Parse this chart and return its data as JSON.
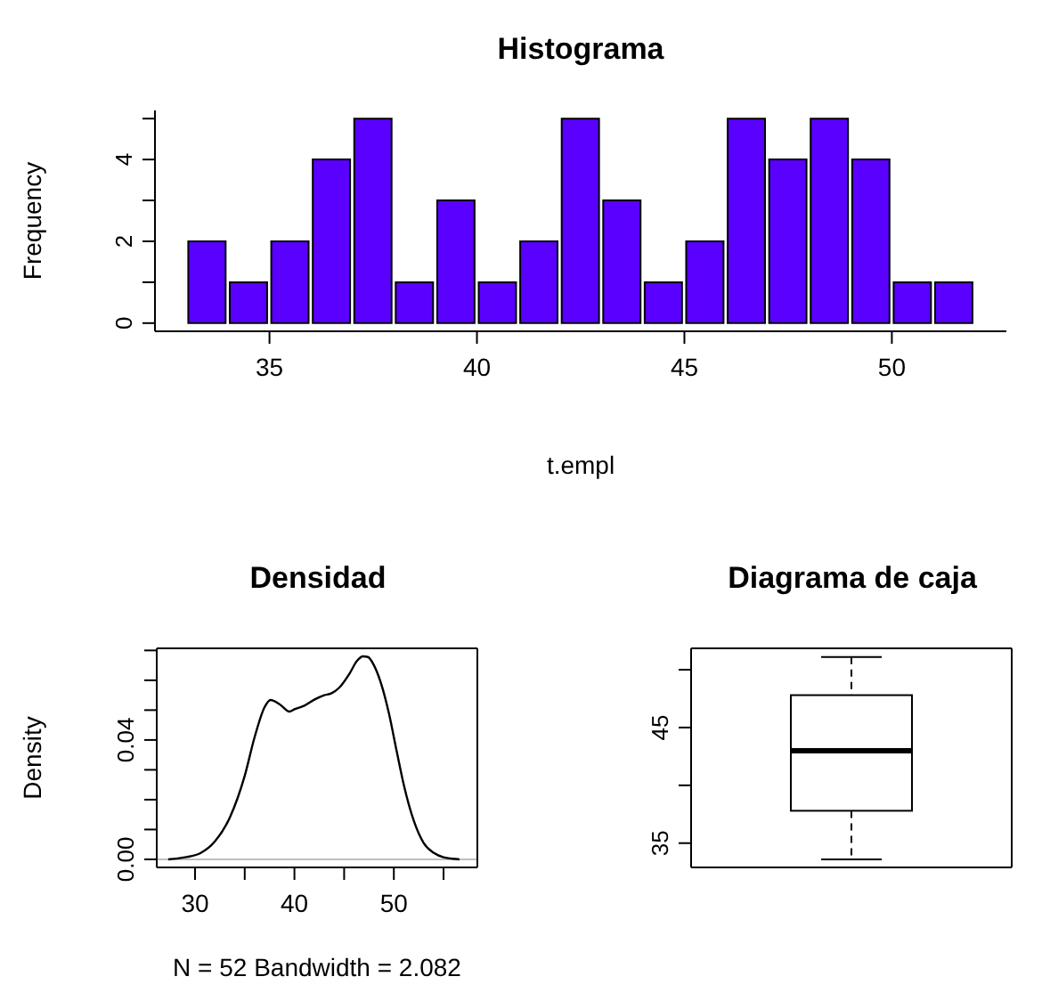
{
  "chart_data": [
    {
      "type": "histogram",
      "title": "Histograma",
      "xlabel": "t.empl",
      "ylabel": "Frequency",
      "color": "#5a00ff",
      "bins": [
        33,
        34,
        35,
        36,
        37,
        38,
        39,
        40,
        41,
        42,
        43,
        44,
        45,
        46,
        47,
        48,
        49,
        50,
        51,
        52
      ],
      "values": [
        2,
        1,
        2,
        4,
        5,
        1,
        3,
        1,
        2,
        5,
        3,
        1,
        2,
        5,
        4,
        5,
        4,
        1,
        1
      ],
      "xlim": [
        32.24,
        52.76
      ],
      "xticks": [
        35,
        40,
        45,
        50
      ],
      "ylim": [
        -0.2,
        5.2
      ],
      "yticks": [
        0,
        {
          "value": 1,
          "label": null
        },
        2,
        {
          "value": 3,
          "label": null
        },
        4,
        {
          "value": 5,
          "label": null
        }
      ]
    },
    {
      "type": "line",
      "title": "Densidad",
      "xlabel": "N = 52   Bandwidth = 2.082",
      "ylabel": "Density",
      "x": [
        27.3,
        29,
        30.5,
        32,
        33.5,
        35,
        36,
        37,
        37.6,
        38.5,
        39.5,
        40,
        41,
        42,
        43,
        43.7,
        44.5,
        45.5,
        46.3,
        46.9,
        47.4,
        48,
        48.8,
        49.5,
        50.3,
        51,
        52,
        53,
        54,
        55,
        56.6
      ],
      "series": [
        {
          "color": "#000000",
          "values": [
            0,
            0.0007,
            0.002,
            0.006,
            0.014,
            0.028,
            0.041,
            0.051,
            0.0534,
            0.052,
            0.0495,
            0.0503,
            0.0515,
            0.0535,
            0.055,
            0.0556,
            0.0575,
            0.062,
            0.0665,
            0.068,
            0.0678,
            0.065,
            0.058,
            0.049,
            0.036,
            0.025,
            0.013,
            0.0055,
            0.0022,
            0.0007,
            0
          ]
        }
      ],
      "xlim": [
        26.15,
        58.4
      ],
      "xticks": [
        30,
        {
          "value": 35,
          "label": null
        },
        40,
        {
          "value": 45,
          "label": null
        },
        50,
        {
          "value": 55,
          "label": null
        }
      ],
      "ylim": [
        -0.0027,
        0.0707
      ],
      "yticks": [
        {
          "value": 0,
          "label": "0.00"
        },
        {
          "value": 0.01,
          "label": null
        },
        {
          "value": 0.02,
          "label": null
        },
        {
          "value": 0.03,
          "label": null
        },
        0.04,
        {
          "value": 0.05,
          "label": null
        },
        {
          "value": 0.06,
          "label": null
        },
        {
          "value": 0.07,
          "label": null
        }
      ],
      "ref_lines": [
        {
          "axis": "y",
          "value": 0,
          "color": "#bebebe"
        }
      ]
    },
    {
      "type": "box",
      "title": "Diagrama de caja",
      "categories": [
        null
      ],
      "boxes": [
        {
          "low": 33.6,
          "q1": 37.8,
          "median": 43,
          "q3": 47.8,
          "high": 51.1
        }
      ],
      "ylim": [
        32.9,
        51.85
      ],
      "yticks": [
        35,
        {
          "value": 40,
          "label": null
        },
        45,
        {
          "value": 50,
          "label": null
        }
      ],
      "tick_labels": "y"
    }
  ]
}
